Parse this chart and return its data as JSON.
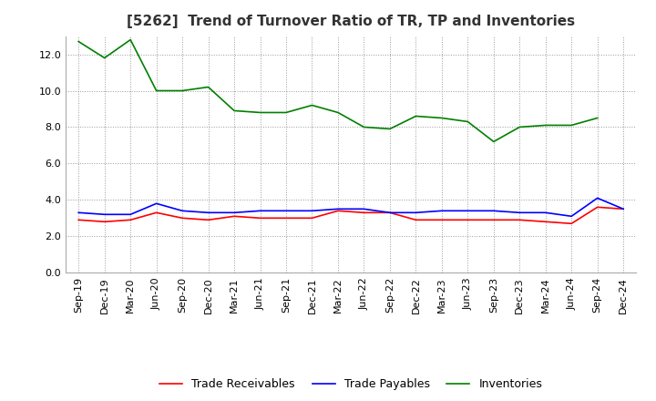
{
  "title": "[5262]  Trend of Turnover Ratio of TR, TP and Inventories",
  "x_labels": [
    "Sep-19",
    "Dec-19",
    "Mar-20",
    "Jun-20",
    "Sep-20",
    "Dec-20",
    "Mar-21",
    "Jun-21",
    "Sep-21",
    "Dec-21",
    "Mar-22",
    "Jun-22",
    "Sep-22",
    "Dec-22",
    "Mar-23",
    "Jun-23",
    "Sep-23",
    "Dec-23",
    "Mar-24",
    "Jun-24",
    "Sep-24",
    "Dec-24"
  ],
  "trade_receivables": [
    2.9,
    2.8,
    2.9,
    3.3,
    3.0,
    2.9,
    3.1,
    3.0,
    3.0,
    3.0,
    3.4,
    3.3,
    3.3,
    2.9,
    2.9,
    2.9,
    2.9,
    2.9,
    2.8,
    2.7,
    3.6,
    3.5
  ],
  "trade_payables": [
    3.3,
    3.2,
    3.2,
    3.8,
    3.4,
    3.3,
    3.3,
    3.4,
    3.4,
    3.4,
    3.5,
    3.5,
    3.3,
    3.3,
    3.4,
    3.4,
    3.4,
    3.3,
    3.3,
    3.1,
    4.1,
    3.5
  ],
  "inventories": [
    12.7,
    11.8,
    12.8,
    10.0,
    10.0,
    10.2,
    8.9,
    8.8,
    8.8,
    9.2,
    8.8,
    8.0,
    7.9,
    8.6,
    8.5,
    8.3,
    7.2,
    8.0,
    8.1,
    8.1,
    8.5,
    null
  ],
  "ylim": [
    0,
    13.0
  ],
  "yticks": [
    0.0,
    2.0,
    4.0,
    6.0,
    8.0,
    10.0,
    12.0
  ],
  "tr_color": "#ff0000",
  "tp_color": "#0000ff",
  "inv_color": "#008000",
  "legend_labels": [
    "Trade Receivables",
    "Trade Payables",
    "Inventories"
  ],
  "background_color": "#ffffff",
  "grid_color": "#999999",
  "title_fontsize": 11,
  "axis_fontsize": 8,
  "legend_fontsize": 9
}
